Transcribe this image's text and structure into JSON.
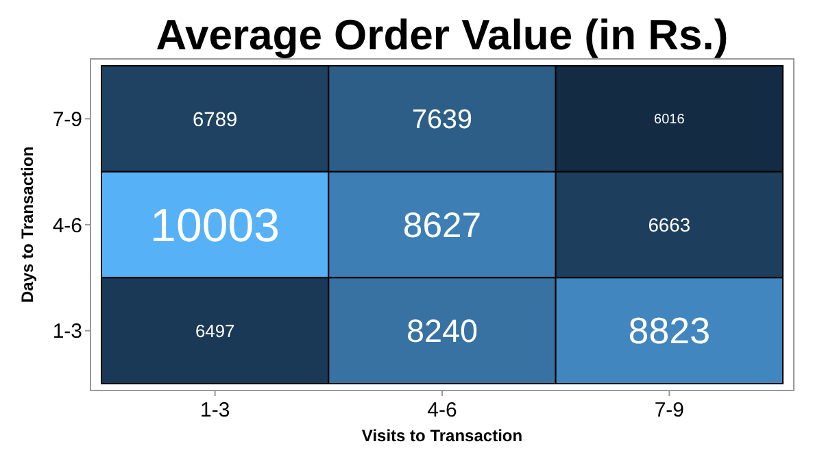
{
  "chart_data": {
    "type": "heatmap",
    "title": "Average Order Value (in Rs.)",
    "xlabel": "Visits to Transaction",
    "ylabel": "Days to Transaction",
    "categories": [
      "1-3",
      "4-6",
      "7-9"
    ],
    "y_categories": [
      "7-9",
      "4-6",
      "1-3"
    ],
    "cells": [
      [
        6789,
        7639,
        6016
      ],
      [
        10003,
        8627,
        6663
      ],
      [
        6497,
        8240,
        8823
      ]
    ],
    "data_labels": true
  }
}
